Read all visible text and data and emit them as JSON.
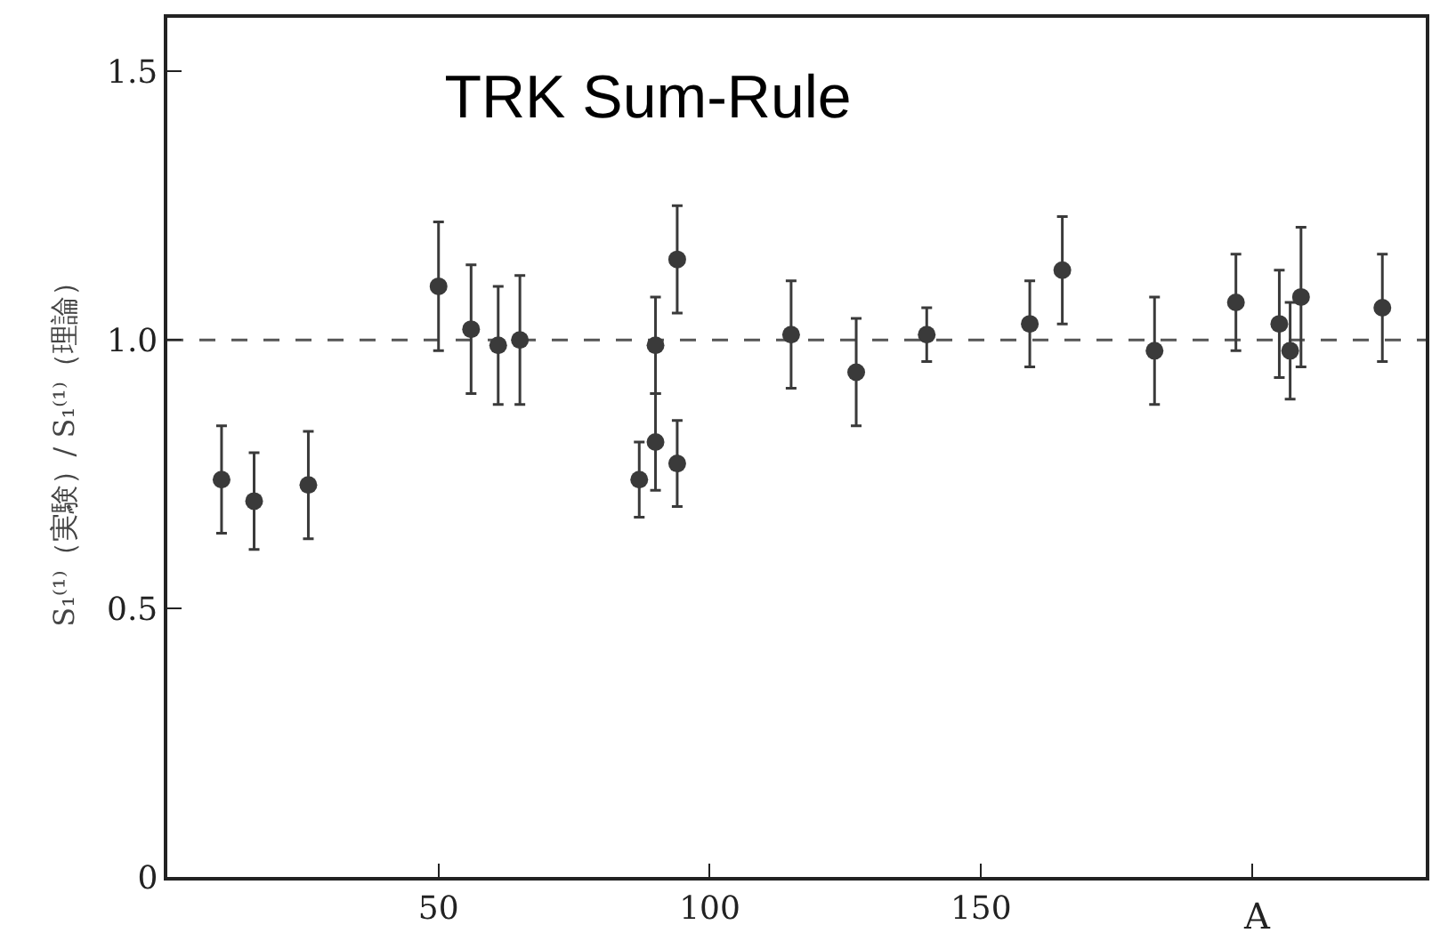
{
  "chart_data": {
    "type": "scatter",
    "title": "TRK Sum-Rule",
    "xlabel": "A",
    "ylabel": "S₁⁽¹⁾（実験）/ S₁⁽¹⁾（理論）",
    "x": [
      10,
      16,
      26,
      50,
      56,
      61,
      65,
      87,
      90,
      90,
      94,
      94,
      115,
      127,
      140,
      159,
      165,
      182,
      197,
      205,
      207,
      209,
      224
    ],
    "series": [
      {
        "color": "#3a3a3a",
        "values": [
          0.74,
          0.7,
          0.73,
          1.1,
          1.02,
          0.99,
          1.0,
          0.74,
          0.99,
          0.81,
          1.15,
          0.77,
          1.01,
          0.94,
          1.01,
          1.03,
          1.13,
          0.98,
          1.07,
          1.03,
          0.98,
          1.08,
          1.06
        ],
        "errors": [
          0.1,
          0.09,
          0.1,
          0.12,
          0.12,
          0.11,
          0.12,
          0.07,
          0.09,
          0.09,
          0.1,
          0.08,
          0.1,
          0.1,
          0.05,
          0.08,
          0.1,
          0.1,
          0.09,
          0.1,
          0.09,
          0.13,
          0.1
        ]
      }
    ],
    "xlim": [
      0,
      232
    ],
    "xticks": [
      50,
      100,
      150,
      {
        "value": 200,
        "label": null
      }
    ],
    "ylim": [
      0,
      1.6
    ],
    "yticks": [
      0,
      0.5,
      {
        "value": 1.0,
        "label": "1.0"
      },
      1.5
    ],
    "ref_lines": [
      {
        "axis": "y",
        "value": 1.0,
        "label": null,
        "color": "#555555",
        "line_style": "dashed"
      }
    ],
    "grid": false,
    "marker": "circle"
  }
}
